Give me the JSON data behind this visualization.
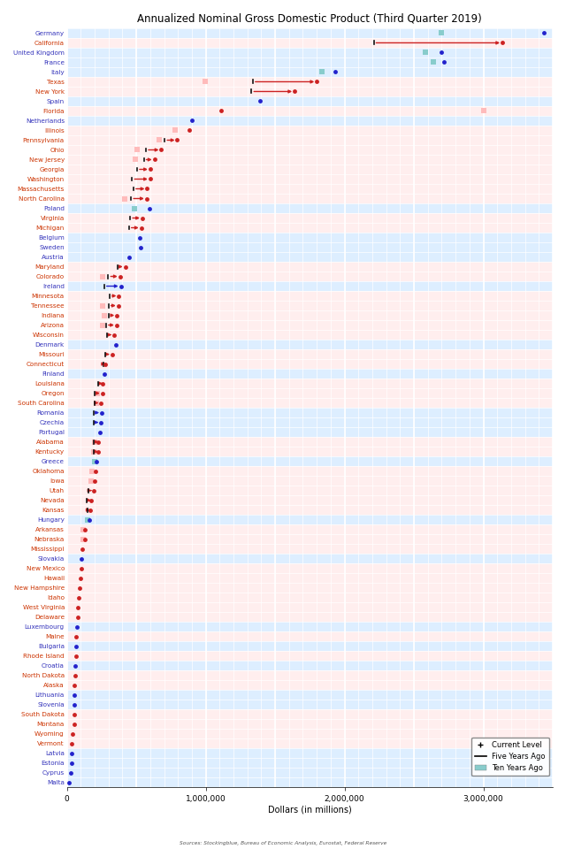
{
  "title": "Annualized Nominal Gross Domestic Product (Third Quarter 2019)",
  "xlabel": "Dollars (in millions)",
  "source": "Sources: Stockingblue, Bureau of Economic Analysis, Eurostat, Federal Reserve",
  "entries": [
    {
      "name": "Germany",
      "type": "EU",
      "current": 3435000,
      "five_yr": null,
      "ten_yr": 2700000
    },
    {
      "name": "California",
      "type": "US",
      "current": 3137000,
      "five_yr": 2210000,
      "ten_yr": null
    },
    {
      "name": "United Kingdom",
      "type": "EU",
      "current": 2700000,
      "five_yr": null,
      "ten_yr": 2580000
    },
    {
      "name": "France",
      "type": "EU",
      "current": 2716000,
      "five_yr": null,
      "ten_yr": 2640000
    },
    {
      "name": "Italy",
      "type": "EU",
      "current": 1930000,
      "five_yr": null,
      "ten_yr": 1840000
    },
    {
      "name": "Texas",
      "type": "US",
      "current": 1800000,
      "five_yr": 1340000,
      "ten_yr": 996000
    },
    {
      "name": "New York",
      "type": "US",
      "current": 1640000,
      "five_yr": 1330000,
      "ten_yr": null
    },
    {
      "name": "Spain",
      "type": "EU",
      "current": 1390000,
      "five_yr": null,
      "ten_yr": null
    },
    {
      "name": "Florida",
      "type": "US",
      "current": 1110000,
      "five_yr": null,
      "ten_yr": 3000000
    },
    {
      "name": "Netherlands",
      "type": "EU",
      "current": 900000,
      "five_yr": null,
      "ten_yr": null
    },
    {
      "name": "Illinois",
      "type": "US",
      "current": 880000,
      "five_yr": null,
      "ten_yr": 780000
    },
    {
      "name": "Pennsylvania",
      "type": "US",
      "current": 795000,
      "five_yr": 705000,
      "ten_yr": 665000
    },
    {
      "name": "Ohio",
      "type": "US",
      "current": 680000,
      "five_yr": 570000,
      "ten_yr": 505000
    },
    {
      "name": "New Jersey",
      "type": "US",
      "current": 630000,
      "five_yr": 554000,
      "ten_yr": 495000
    },
    {
      "name": "Georgia",
      "type": "US",
      "current": 600000,
      "five_yr": 506000,
      "ten_yr": null
    },
    {
      "name": "Washington",
      "type": "US",
      "current": 600000,
      "five_yr": 470000,
      "ten_yr": null
    },
    {
      "name": "Massachusetts",
      "type": "US",
      "current": 578000,
      "five_yr": 480000,
      "ten_yr": null
    },
    {
      "name": "North Carolina",
      "type": "US",
      "current": 574000,
      "five_yr": 463000,
      "ten_yr": 418000
    },
    {
      "name": "Poland",
      "type": "EU",
      "current": 592000,
      "five_yr": null,
      "ten_yr": 485000
    },
    {
      "name": "Virginia",
      "type": "US",
      "current": 543000,
      "five_yr": 456000,
      "ten_yr": null
    },
    {
      "name": "Michigan",
      "type": "US",
      "current": 535000,
      "five_yr": 447000,
      "ten_yr": null
    },
    {
      "name": "Belgium",
      "type": "EU",
      "current": 527000,
      "five_yr": null,
      "ten_yr": null
    },
    {
      "name": "Sweden",
      "type": "EU",
      "current": 531000,
      "five_yr": null,
      "ten_yr": null
    },
    {
      "name": "Austria",
      "type": "EU",
      "current": 447000,
      "five_yr": null,
      "ten_yr": null
    },
    {
      "name": "Maryland",
      "type": "US",
      "current": 420000,
      "five_yr": 363000,
      "ten_yr": null
    },
    {
      "name": "Colorado",
      "type": "US",
      "current": 382000,
      "five_yr": 298000,
      "ten_yr": 260000
    },
    {
      "name": "Ireland",
      "type": "EU",
      "current": 388000,
      "five_yr": 269000,
      "ten_yr": null
    },
    {
      "name": "Minnesota",
      "type": "US",
      "current": 374000,
      "five_yr": 310000,
      "ten_yr": null
    },
    {
      "name": "Tennessee",
      "type": "US",
      "current": 370000,
      "five_yr": 300000,
      "ten_yr": 260000
    },
    {
      "name": "Indiana",
      "type": "US",
      "current": 360000,
      "five_yr": 302000,
      "ten_yr": 270000
    },
    {
      "name": "Arizona",
      "type": "US",
      "current": 358000,
      "five_yr": 282000,
      "ten_yr": 256000
    },
    {
      "name": "Wisconsin",
      "type": "US",
      "current": 340000,
      "five_yr": 292000,
      "ten_yr": null
    },
    {
      "name": "Denmark",
      "type": "EU",
      "current": 350000,
      "five_yr": null,
      "ten_yr": null
    },
    {
      "name": "Missouri",
      "type": "US",
      "current": 325000,
      "five_yr": 274000,
      "ten_yr": null
    },
    {
      "name": "Connecticut",
      "type": "US",
      "current": 278000,
      "five_yr": 262000,
      "ten_yr": null
    },
    {
      "name": "Finland",
      "type": "EU",
      "current": 268000,
      "five_yr": null,
      "ten_yr": null
    },
    {
      "name": "Louisiana",
      "type": "US",
      "current": 258000,
      "five_yr": 228000,
      "ten_yr": null
    },
    {
      "name": "Oregon",
      "type": "US",
      "current": 255000,
      "five_yr": 200000,
      "ten_yr": 222000
    },
    {
      "name": "South Carolina",
      "type": "US",
      "current": 244000,
      "five_yr": 198000,
      "ten_yr": 215000
    },
    {
      "name": "Romania",
      "type": "EU",
      "current": 250000,
      "five_yr": 196000,
      "ten_yr": null
    },
    {
      "name": "Czechia",
      "type": "EU",
      "current": 245000,
      "five_yr": 194000,
      "ten_yr": null
    },
    {
      "name": "Portugal",
      "type": "EU",
      "current": 238000,
      "five_yr": null,
      "ten_yr": null
    },
    {
      "name": "Alabama",
      "type": "US",
      "current": 228000,
      "five_yr": 196000,
      "ten_yr": 201000
    },
    {
      "name": "Kentucky",
      "type": "US",
      "current": 225000,
      "five_yr": 192000,
      "ten_yr": 195000
    },
    {
      "name": "Greece",
      "type": "EU",
      "current": 214000,
      "five_yr": null,
      "ten_yr": 200000
    },
    {
      "name": "Oklahoma",
      "type": "US",
      "current": 204000,
      "five_yr": null,
      "ten_yr": 183000
    },
    {
      "name": "Iowa",
      "type": "US",
      "current": 200000,
      "five_yr": null,
      "ten_yr": 177000
    },
    {
      "name": "Utah",
      "type": "US",
      "current": 196000,
      "five_yr": 154000,
      "ten_yr": null
    },
    {
      "name": "Nevada",
      "type": "US",
      "current": 175000,
      "five_yr": 144000,
      "ten_yr": null
    },
    {
      "name": "Kansas",
      "type": "US",
      "current": 167000,
      "five_yr": 146000,
      "ten_yr": null
    },
    {
      "name": "Hungary",
      "type": "EU",
      "current": 162000,
      "five_yr": null,
      "ten_yr": 150000
    },
    {
      "name": "Arkansas",
      "type": "US",
      "current": 130000,
      "five_yr": null,
      "ten_yr": 117000
    },
    {
      "name": "Nebraska",
      "type": "US",
      "current": 131000,
      "five_yr": null,
      "ten_yr": 115000
    },
    {
      "name": "Mississippi",
      "type": "US",
      "current": 113000,
      "five_yr": null,
      "ten_yr": null
    },
    {
      "name": "Slovakia",
      "type": "EU",
      "current": 105000,
      "five_yr": null,
      "ten_yr": null
    },
    {
      "name": "New Mexico",
      "type": "US",
      "current": 101000,
      "five_yr": null,
      "ten_yr": null
    },
    {
      "name": "Hawaii",
      "type": "US",
      "current": 97000,
      "five_yr": null,
      "ten_yr": null
    },
    {
      "name": "New Hampshire",
      "type": "US",
      "current": 89000,
      "five_yr": null,
      "ten_yr": null
    },
    {
      "name": "Idaho",
      "type": "US",
      "current": 86000,
      "five_yr": null,
      "ten_yr": null
    },
    {
      "name": "West Virginia",
      "type": "US",
      "current": 78000,
      "five_yr": null,
      "ten_yr": null
    },
    {
      "name": "Delaware",
      "type": "US",
      "current": 76000,
      "five_yr": null,
      "ten_yr": null
    },
    {
      "name": "Luxembourg",
      "type": "EU",
      "current": 70000,
      "five_yr": null,
      "ten_yr": null
    },
    {
      "name": "Maine",
      "type": "US",
      "current": 66000,
      "five_yr": null,
      "ten_yr": null
    },
    {
      "name": "Bulgaria",
      "type": "EU",
      "current": 65000,
      "five_yr": null,
      "ten_yr": null
    },
    {
      "name": "Rhode Island",
      "type": "US",
      "current": 63000,
      "five_yr": null,
      "ten_yr": null
    },
    {
      "name": "Croatia",
      "type": "EU",
      "current": 60000,
      "five_yr": null,
      "ten_yr": null
    },
    {
      "name": "North Dakota",
      "type": "US",
      "current": 57000,
      "five_yr": null,
      "ten_yr": null
    },
    {
      "name": "Alaska",
      "type": "US",
      "current": 55000,
      "five_yr": null,
      "ten_yr": null
    },
    {
      "name": "Lithuania",
      "type": "EU",
      "current": 54000,
      "five_yr": null,
      "ten_yr": null
    },
    {
      "name": "Slovenia",
      "type": "EU",
      "current": 54000,
      "five_yr": null,
      "ten_yr": null
    },
    {
      "name": "South Dakota",
      "type": "US",
      "current": 53000,
      "five_yr": null,
      "ten_yr": null
    },
    {
      "name": "Montana",
      "type": "US",
      "current": 51000,
      "five_yr": null,
      "ten_yr": null
    },
    {
      "name": "Wyoming",
      "type": "US",
      "current": 38000,
      "five_yr": null,
      "ten_yr": null
    },
    {
      "name": "Vermont",
      "type": "US",
      "current": 36000,
      "five_yr": null,
      "ten_yr": null
    },
    {
      "name": "Latvia",
      "type": "EU",
      "current": 34000,
      "five_yr": null,
      "ten_yr": null
    },
    {
      "name": "Estonia",
      "type": "EU",
      "current": 31000,
      "five_yr": null,
      "ten_yr": null
    },
    {
      "name": "Cyprus",
      "type": "EU",
      "current": 25000,
      "five_yr": null,
      "ten_yr": null
    },
    {
      "name": "Malta",
      "type": "EU",
      "current": 15000,
      "five_yr": null,
      "ten_yr": null
    }
  ],
  "eu_label_color": "#3333bb",
  "us_label_color": "#cc3300",
  "current_dot_color_eu": "#2222cc",
  "current_dot_color_us": "#cc2222",
  "line_color_eu": "#2222cc",
  "line_color_us": "#cc2222",
  "tick_bar_color": "#111111",
  "ten_yr_color_eu": "#88cccc",
  "ten_yr_color_us": "#ffbbbb",
  "bg_eu": "#ddeeff",
  "bg_us": "#ffeeee"
}
